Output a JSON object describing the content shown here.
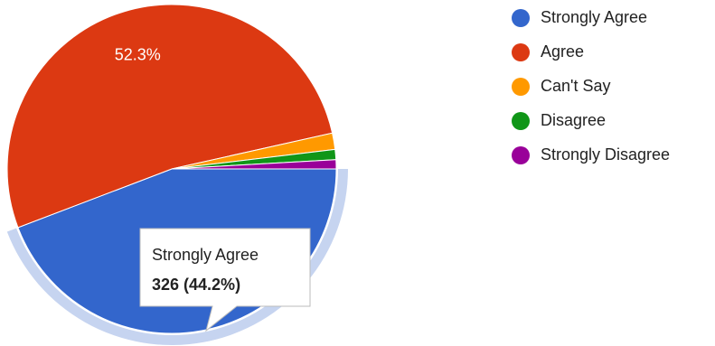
{
  "chart_data": {
    "type": "pie",
    "categories": [
      "Strongly Agree",
      "Agree",
      "Can't Say",
      "Disagree",
      "Strongly Disagree"
    ],
    "values": [
      44.2,
      52.3,
      1.6,
      1.0,
      0.9
    ],
    "value_labels": [
      null,
      "52.3%",
      null,
      null,
      null
    ],
    "colors": [
      "#3366cc",
      "#dc3912",
      "#ff9900",
      "#109618",
      "#990099"
    ],
    "start_angle": 90,
    "legend": "right",
    "highlight": 0,
    "tooltip": {
      "text": "326 (44.2%)"
    }
  }
}
